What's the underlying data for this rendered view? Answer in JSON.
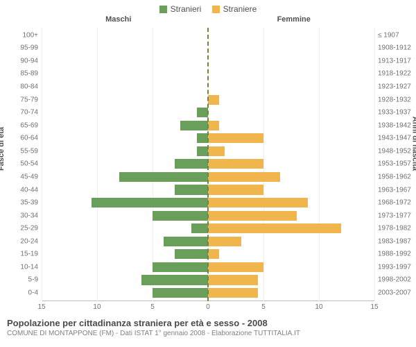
{
  "legend": {
    "male": {
      "label": "Stranieri",
      "color": "#6a9e5b"
    },
    "female": {
      "label": "Straniere",
      "color": "#f0b54c"
    }
  },
  "header": {
    "male_col": "Maschi",
    "female_col": "Femmine"
  },
  "axes": {
    "y_left_title": "Fasce di età",
    "y_right_title": "Anni di nascita",
    "xlim": 15,
    "xticks_left": [
      15,
      10,
      5,
      0
    ],
    "xticks_right": [
      5,
      10,
      15
    ],
    "grid_color": "#eeeeee",
    "zero_line_color": "#7f7f36"
  },
  "rows": [
    {
      "age": "100+",
      "birth": "≤ 1907",
      "m": 0,
      "f": 0
    },
    {
      "age": "95-99",
      "birth": "1908-1912",
      "m": 0,
      "f": 0
    },
    {
      "age": "90-94",
      "birth": "1913-1917",
      "m": 0,
      "f": 0
    },
    {
      "age": "85-89",
      "birth": "1918-1922",
      "m": 0,
      "f": 0
    },
    {
      "age": "80-84",
      "birth": "1923-1927",
      "m": 0,
      "f": 0
    },
    {
      "age": "75-79",
      "birth": "1928-1932",
      "m": 0,
      "f": 1
    },
    {
      "age": "70-74",
      "birth": "1933-1937",
      "m": 1,
      "f": 0
    },
    {
      "age": "65-69",
      "birth": "1938-1942",
      "m": 2.5,
      "f": 1
    },
    {
      "age": "60-64",
      "birth": "1943-1947",
      "m": 1,
      "f": 5
    },
    {
      "age": "55-59",
      "birth": "1948-1952",
      "m": 1,
      "f": 1.5
    },
    {
      "age": "50-54",
      "birth": "1953-1957",
      "m": 3,
      "f": 5
    },
    {
      "age": "45-49",
      "birth": "1958-1962",
      "m": 8,
      "f": 6.5
    },
    {
      "age": "40-44",
      "birth": "1963-1967",
      "m": 3,
      "f": 5
    },
    {
      "age": "35-39",
      "birth": "1968-1972",
      "m": 10.5,
      "f": 9
    },
    {
      "age": "30-34",
      "birth": "1973-1977",
      "m": 5,
      "f": 8
    },
    {
      "age": "25-29",
      "birth": "1978-1982",
      "m": 1.5,
      "f": 12
    },
    {
      "age": "20-24",
      "birth": "1983-1987",
      "m": 4,
      "f": 3
    },
    {
      "age": "15-19",
      "birth": "1988-1992",
      "m": 3,
      "f": 1
    },
    {
      "age": "10-14",
      "birth": "1993-1997",
      "m": 5,
      "f": 5
    },
    {
      "age": "5-9",
      "birth": "1998-2002",
      "m": 6,
      "f": 4.5
    },
    {
      "age": "0-4",
      "birth": "2003-2007",
      "m": 5,
      "f": 4.5
    }
  ],
  "footer": {
    "title": "Popolazione per cittadinanza straniera per età e sesso - 2008",
    "subtitle": "COMUNE DI MONTAPPONE (FM) - Dati ISTAT 1° gennaio 2008 - Elaborazione TUTTITALIA.IT"
  },
  "style": {
    "background_color": "#ffffff",
    "label_fontsize": 10,
    "title_fontsize": 13
  }
}
